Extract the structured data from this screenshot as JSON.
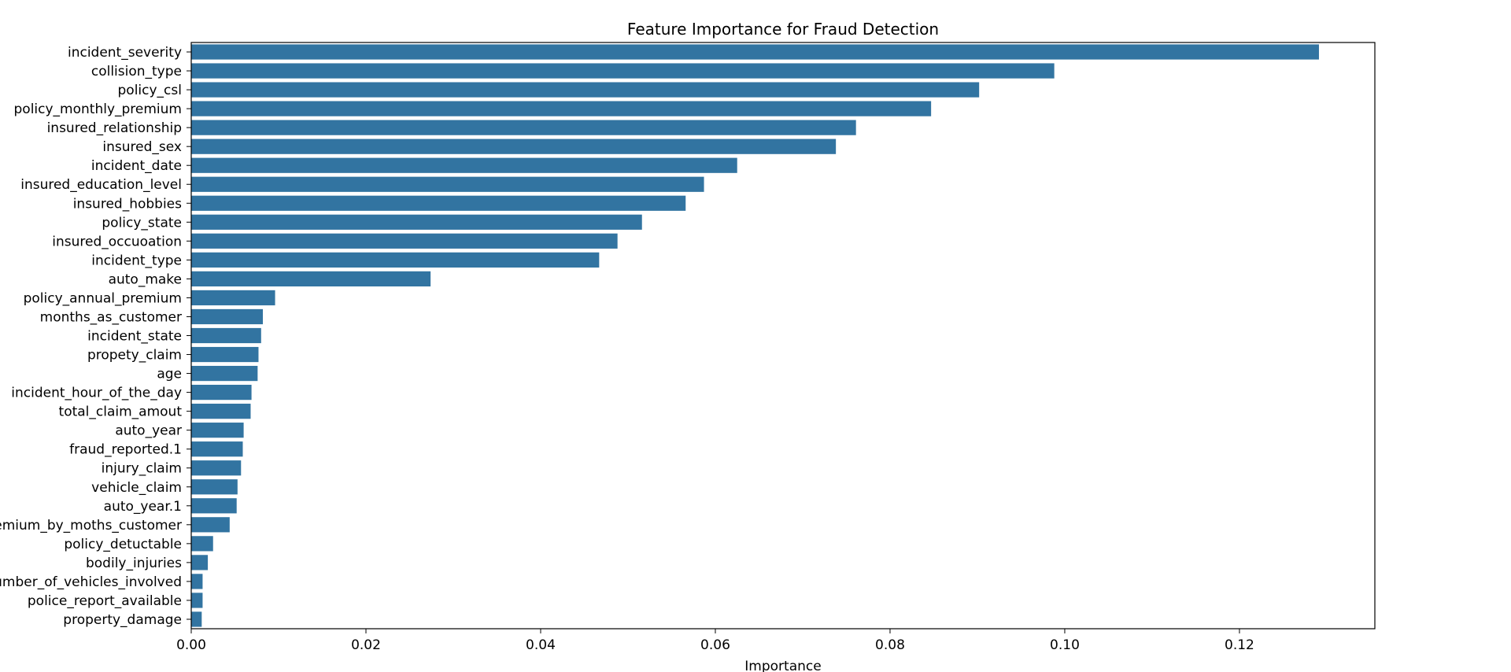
{
  "chart_data": {
    "type": "bar",
    "orientation": "horizontal",
    "title": "Feature Importance for Fraud Detection",
    "xlabel": "Importance",
    "ylabel": "",
    "xlim": [
      0,
      0.1355
    ],
    "x_ticks": [
      0.0,
      0.02,
      0.04,
      0.06,
      0.08,
      0.1,
      0.12
    ],
    "x_tick_labels": [
      "0.00",
      "0.02",
      "0.04",
      "0.06",
      "0.08",
      "0.10",
      "0.12"
    ],
    "grid": false,
    "bar_color": "#3274a1",
    "categories": [
      "incident_severity",
      "collision_type",
      "policy_csl",
      "policy_monthly_premium",
      "insured_relationship",
      "insured_sex",
      "incident_date",
      "insured_education_level",
      "insured_hobbies",
      "policy_state",
      "insured_occuoation",
      "incident_type",
      "auto_make",
      "policy_annual_premium",
      "months_as_customer",
      "incident_state",
      "propety_claim",
      "age",
      "incident_hour_of_the_day",
      "total_claim_amout",
      "auto_year",
      "fraud_reported.1",
      "injury_claim",
      "vehicle_claim",
      "auto_year.1",
      "premium_by_moths_customer",
      "policy_detuctable",
      "bodily_injuries",
      "number_of_vehicles_involved",
      "police_report_available",
      "property_damage"
    ],
    "values": [
      0.1291,
      0.0988,
      0.0902,
      0.0847,
      0.0761,
      0.0738,
      0.0625,
      0.0587,
      0.0566,
      0.0516,
      0.0488,
      0.0467,
      0.0274,
      0.0096,
      0.0082,
      0.008,
      0.0077,
      0.0076,
      0.0069,
      0.0068,
      0.006,
      0.0059,
      0.0057,
      0.0053,
      0.0052,
      0.0044,
      0.0025,
      0.0019,
      0.0013,
      0.0013,
      0.0012
    ]
  }
}
